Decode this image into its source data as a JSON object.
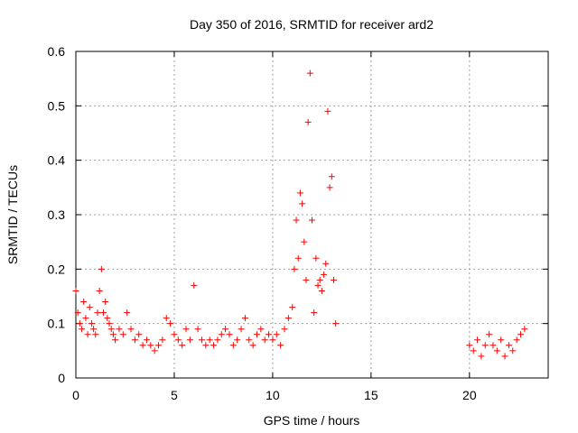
{
  "chart_data": {
    "type": "scatter",
    "title": "Day 350 of 2016, SRMTID for receiver ard2",
    "xlabel": "GPS time / hours",
    "ylabel": "SRMTID / TECUs",
    "xlim": [
      0,
      24
    ],
    "ylim": [
      0,
      0.6
    ],
    "xticks": [
      0,
      5,
      10,
      15,
      20
    ],
    "yticks": [
      0,
      0.1,
      0.2,
      0.3,
      0.4,
      0.5,
      0.6
    ],
    "grid": true,
    "marker": "+",
    "series": [
      {
        "name": "ard2",
        "color": "#ff0000",
        "x": [
          0.0,
          0.1,
          0.2,
          0.3,
          0.4,
          0.5,
          0.6,
          0.7,
          0.8,
          0.9,
          1.0,
          1.1,
          1.2,
          1.3,
          1.4,
          1.5,
          1.6,
          1.7,
          1.8,
          1.9,
          2.0,
          2.2,
          2.4,
          2.6,
          2.8,
          3.0,
          3.2,
          3.4,
          3.6,
          3.8,
          4.0,
          4.2,
          4.4,
          4.6,
          4.8,
          5.0,
          5.2,
          5.4,
          5.6,
          5.8,
          6.0,
          6.2,
          6.4,
          6.6,
          6.8,
          7.0,
          7.2,
          7.4,
          7.6,
          7.8,
          8.0,
          8.2,
          8.4,
          8.6,
          8.8,
          9.0,
          9.2,
          9.4,
          9.6,
          9.8,
          10.0,
          10.2,
          10.4,
          10.6,
          10.8,
          11.0,
          11.1,
          11.2,
          11.3,
          11.4,
          11.5,
          11.6,
          11.7,
          11.8,
          11.9,
          12.0,
          12.1,
          12.2,
          12.3,
          12.4,
          12.5,
          12.6,
          12.7,
          12.8,
          12.9,
          13.0,
          13.1,
          13.2,
          20.0,
          20.2,
          20.4,
          20.6,
          20.8,
          21.0,
          21.2,
          21.4,
          21.6,
          21.8,
          22.0,
          22.2,
          22.4,
          22.6,
          22.8
        ],
        "y": [
          0.16,
          0.12,
          0.1,
          0.09,
          0.14,
          0.11,
          0.08,
          0.13,
          0.1,
          0.09,
          0.08,
          0.12,
          0.16,
          0.2,
          0.12,
          0.14,
          0.11,
          0.1,
          0.09,
          0.08,
          0.07,
          0.09,
          0.08,
          0.12,
          0.09,
          0.07,
          0.08,
          0.06,
          0.07,
          0.06,
          0.05,
          0.06,
          0.07,
          0.11,
          0.1,
          0.08,
          0.07,
          0.06,
          0.09,
          0.07,
          0.17,
          0.09,
          0.07,
          0.06,
          0.07,
          0.06,
          0.07,
          0.08,
          0.09,
          0.08,
          0.06,
          0.07,
          0.09,
          0.11,
          0.07,
          0.06,
          0.08,
          0.09,
          0.07,
          0.08,
          0.07,
          0.08,
          0.06,
          0.09,
          0.11,
          0.13,
          0.2,
          0.29,
          0.22,
          0.34,
          0.32,
          0.25,
          0.18,
          0.47,
          0.56,
          0.29,
          0.12,
          0.22,
          0.17,
          0.18,
          0.16,
          0.19,
          0.21,
          0.49,
          0.35,
          0.37,
          0.18,
          0.1,
          0.06,
          0.05,
          0.07,
          0.04,
          0.06,
          0.08,
          0.06,
          0.05,
          0.07,
          0.04,
          0.06,
          0.05,
          0.07,
          0.08,
          0.09
        ]
      }
    ]
  }
}
